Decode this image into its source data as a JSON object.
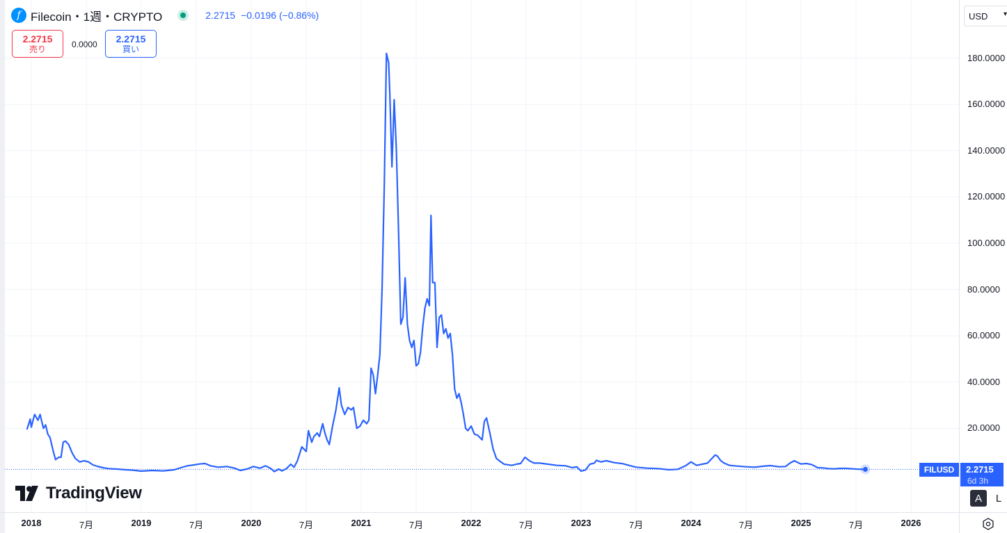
{
  "header": {
    "symbol_title": "Filecoin・1週・CRYPTO",
    "logo_glyph": "f",
    "last_price": "2.2715",
    "change": "−0.0196 (−0.86%)"
  },
  "trade": {
    "sell_price": "2.2715",
    "sell_label": "売り",
    "spread": "0.0000",
    "buy_price": "2.2715",
    "buy_label": "買い"
  },
  "currency": {
    "value": "USD"
  },
  "price_tag": {
    "symbol": "FILUSD",
    "value": "2.2715",
    "countdown": "6d 3h"
  },
  "branding": {
    "name": "TradingView"
  },
  "controls": {
    "auto": "A",
    "log": "L"
  },
  "colors": {
    "line": "#2962ff",
    "sell": "#f23645",
    "buy": "#2962ff",
    "status": "#089981"
  },
  "chart_data": {
    "type": "line",
    "title": "",
    "xlabel": "",
    "ylabel": "",
    "ylim": [
      -2,
      187
    ],
    "x_ticks": [
      {
        "t": 2018.0,
        "label": "2018",
        "year": true
      },
      {
        "t": 2018.5,
        "label": "7月",
        "year": false
      },
      {
        "t": 2019.0,
        "label": "2019",
        "year": true
      },
      {
        "t": 2019.5,
        "label": "7月",
        "year": false
      },
      {
        "t": 2020.0,
        "label": "2020",
        "year": true
      },
      {
        "t": 2020.5,
        "label": "7月",
        "year": false
      },
      {
        "t": 2021.0,
        "label": "2021",
        "year": true
      },
      {
        "t": 2021.5,
        "label": "7月",
        "year": false
      },
      {
        "t": 2022.0,
        "label": "2022",
        "year": true
      },
      {
        "t": 2022.5,
        "label": "7月",
        "year": false
      },
      {
        "t": 2023.0,
        "label": "2023",
        "year": true
      },
      {
        "t": 2023.5,
        "label": "7月",
        "year": false
      },
      {
        "t": 2024.0,
        "label": "2024",
        "year": true
      },
      {
        "t": 2024.5,
        "label": "7月",
        "year": false
      },
      {
        "t": 2025.0,
        "label": "2025",
        "year": true
      },
      {
        "t": 2025.5,
        "label": "7月",
        "year": false
      },
      {
        "t": 2026.0,
        "label": "2026",
        "year": true
      }
    ],
    "y_ticks": [
      {
        "v": 20,
        "label": "20.0000"
      },
      {
        "v": 40,
        "label": "40.0000"
      },
      {
        "v": 60,
        "label": "60.0000"
      },
      {
        "v": 80,
        "label": "80.0000"
      },
      {
        "v": 100,
        "label": "100.0000"
      },
      {
        "v": 120,
        "label": "120.0000"
      },
      {
        "v": 140,
        "label": "140.0000"
      },
      {
        "v": 160,
        "label": "160.0000"
      },
      {
        "v": 180,
        "label": "180.0000"
      }
    ],
    "series": [
      {
        "color": "#2962ff",
        "points": [
          [
            2017.96,
            19.5
          ],
          [
            2017.99,
            24
          ],
          [
            2018.0,
            20.5
          ],
          [
            2018.03,
            26
          ],
          [
            2018.06,
            23.5
          ],
          [
            2018.08,
            26
          ],
          [
            2018.11,
            20
          ],
          [
            2018.13,
            21.5
          ],
          [
            2018.15,
            17.5
          ],
          [
            2018.17,
            16
          ],
          [
            2018.2,
            10
          ],
          [
            2018.22,
            6.5
          ],
          [
            2018.25,
            7.5
          ],
          [
            2018.27,
            7.5
          ],
          [
            2018.29,
            14
          ],
          [
            2018.31,
            14.5
          ],
          [
            2018.34,
            13
          ],
          [
            2018.37,
            9.5
          ],
          [
            2018.4,
            7
          ],
          [
            2018.44,
            5.5
          ],
          [
            2018.48,
            6
          ],
          [
            2018.52,
            5.5
          ],
          [
            2018.56,
            4.2
          ],
          [
            2018.6,
            3.6
          ],
          [
            2018.65,
            3
          ],
          [
            2018.7,
            2.6
          ],
          [
            2018.78,
            2.4
          ],
          [
            2018.86,
            2.1
          ],
          [
            2018.93,
            1.9
          ],
          [
            2019.0,
            1.5
          ],
          [
            2019.1,
            1.8
          ],
          [
            2019.2,
            1.6
          ],
          [
            2019.3,
            2.1
          ],
          [
            2019.36,
            3
          ],
          [
            2019.42,
            3.8
          ],
          [
            2019.48,
            4.2
          ],
          [
            2019.53,
            4.6
          ],
          [
            2019.58,
            4.8
          ],
          [
            2019.63,
            3.8
          ],
          [
            2019.7,
            3.2
          ],
          [
            2019.78,
            3.5
          ],
          [
            2019.85,
            2.8
          ],
          [
            2019.9,
            1.8
          ],
          [
            2019.96,
            2.4
          ],
          [
            2020.02,
            3.5
          ],
          [
            2020.08,
            2.8
          ],
          [
            2020.13,
            3.8
          ],
          [
            2020.18,
            2.6
          ],
          [
            2020.21,
            1.3
          ],
          [
            2020.25,
            2.4
          ],
          [
            2020.28,
            1.6
          ],
          [
            2020.32,
            2.6
          ],
          [
            2020.36,
            4.5
          ],
          [
            2020.39,
            3.2
          ],
          [
            2020.42,
            6
          ],
          [
            2020.46,
            12
          ],
          [
            2020.5,
            10
          ],
          [
            2020.52,
            19
          ],
          [
            2020.55,
            14
          ],
          [
            2020.57,
            16.5
          ],
          [
            2020.6,
            18
          ],
          [
            2020.62,
            16.5
          ],
          [
            2020.65,
            22
          ],
          [
            2020.67,
            18
          ],
          [
            2020.69,
            15
          ],
          [
            2020.71,
            13
          ],
          [
            2020.74,
            21
          ],
          [
            2020.77,
            28
          ],
          [
            2020.8,
            37.5
          ],
          [
            2020.82,
            30
          ],
          [
            2020.85,
            26
          ],
          [
            2020.88,
            29
          ],
          [
            2020.91,
            28
          ],
          [
            2020.93,
            29
          ],
          [
            2020.96,
            20
          ],
          [
            2020.99,
            21
          ],
          [
            2021.02,
            23.5
          ],
          [
            2021.05,
            22
          ],
          [
            2021.07,
            23.5
          ],
          [
            2021.09,
            46
          ],
          [
            2021.11,
            43
          ],
          [
            2021.13,
            35
          ],
          [
            2021.15,
            43
          ],
          [
            2021.17,
            52
          ],
          [
            2021.19,
            80
          ],
          [
            2021.21,
            125
          ],
          [
            2021.23,
            182
          ],
          [
            2021.25,
            178
          ],
          [
            2021.26,
            165
          ],
          [
            2021.28,
            133
          ],
          [
            2021.3,
            162
          ],
          [
            2021.32,
            140
          ],
          [
            2021.34,
            105
          ],
          [
            2021.36,
            65
          ],
          [
            2021.38,
            68
          ],
          [
            2021.4,
            85
          ],
          [
            2021.42,
            65
          ],
          [
            2021.44,
            58
          ],
          [
            2021.46,
            55
          ],
          [
            2021.48,
            58
          ],
          [
            2021.5,
            47
          ],
          [
            2021.52,
            48
          ],
          [
            2021.54,
            53
          ],
          [
            2021.56,
            64
          ],
          [
            2021.58,
            72
          ],
          [
            2021.6,
            76
          ],
          [
            2021.62,
            73
          ],
          [
            2021.635,
            112
          ],
          [
            2021.65,
            83
          ],
          [
            2021.67,
            83
          ],
          [
            2021.69,
            55
          ],
          [
            2021.71,
            68
          ],
          [
            2021.73,
            69
          ],
          [
            2021.75,
            61
          ],
          [
            2021.77,
            63
          ],
          [
            2021.79,
            59
          ],
          [
            2021.81,
            61
          ],
          [
            2021.83,
            52
          ],
          [
            2021.85,
            37
          ],
          [
            2021.87,
            33
          ],
          [
            2021.89,
            35
          ],
          [
            2021.91,
            31
          ],
          [
            2021.93,
            26
          ],
          [
            2021.95,
            20
          ],
          [
            2021.97,
            19
          ],
          [
            2022.0,
            21
          ],
          [
            2022.03,
            17.5
          ],
          [
            2022.06,
            17
          ],
          [
            2022.08,
            16
          ],
          [
            2022.1,
            15
          ],
          [
            2022.12,
            23
          ],
          [
            2022.14,
            24.5
          ],
          [
            2022.17,
            18
          ],
          [
            2022.2,
            11
          ],
          [
            2022.23,
            7
          ],
          [
            2022.27,
            5.5
          ],
          [
            2022.3,
            4.5
          ],
          [
            2022.33,
            4.3
          ],
          [
            2022.37,
            4
          ],
          [
            2022.41,
            4.5
          ],
          [
            2022.45,
            4.8
          ],
          [
            2022.49,
            7.5
          ],
          [
            2022.53,
            6
          ],
          [
            2022.57,
            5
          ],
          [
            2022.62,
            5
          ],
          [
            2022.7,
            4.5
          ],
          [
            2022.78,
            4
          ],
          [
            2022.86,
            3.8
          ],
          [
            2022.92,
            3
          ],
          [
            2022.96,
            3.4
          ],
          [
            2023.0,
            1.5
          ],
          [
            2023.04,
            2
          ],
          [
            2023.08,
            4.5
          ],
          [
            2023.12,
            5
          ],
          [
            2023.14,
            6.2
          ],
          [
            2023.18,
            5.5
          ],
          [
            2023.23,
            6
          ],
          [
            2023.3,
            5.2
          ],
          [
            2023.38,
            4.7
          ],
          [
            2023.45,
            3.8
          ],
          [
            2023.5,
            3.2
          ],
          [
            2023.6,
            2.8
          ],
          [
            2023.7,
            2.6
          ],
          [
            2023.8,
            2.1
          ],
          [
            2023.88,
            2.3
          ],
          [
            2023.95,
            3.8
          ],
          [
            2024.0,
            5.5
          ],
          [
            2024.05,
            4
          ],
          [
            2024.1,
            4.5
          ],
          [
            2024.15,
            5
          ],
          [
            2024.18,
            6.5
          ],
          [
            2024.2,
            7.5
          ],
          [
            2024.22,
            8.5
          ],
          [
            2024.24,
            8
          ],
          [
            2024.27,
            6
          ],
          [
            2024.3,
            5
          ],
          [
            2024.35,
            4
          ],
          [
            2024.42,
            3.7
          ],
          [
            2024.5,
            3.4
          ],
          [
            2024.58,
            3.2
          ],
          [
            2024.65,
            3.6
          ],
          [
            2024.72,
            3.9
          ],
          [
            2024.8,
            3.4
          ],
          [
            2024.86,
            3.5
          ],
          [
            2024.9,
            5
          ],
          [
            2024.94,
            6
          ],
          [
            2024.96,
            5.5
          ],
          [
            2025.0,
            4.6
          ],
          [
            2025.05,
            4.8
          ],
          [
            2025.1,
            4.3
          ],
          [
            2025.15,
            3
          ],
          [
            2025.2,
            2.9
          ],
          [
            2025.25,
            2.6
          ],
          [
            2025.3,
            2.5
          ],
          [
            2025.35,
            2.7
          ],
          [
            2025.4,
            2.7
          ],
          [
            2025.45,
            2.6
          ],
          [
            2025.5,
            2.4
          ],
          [
            2025.55,
            2.3
          ],
          [
            2025.585,
            2.2715
          ]
        ]
      }
    ],
    "last_value": 2.2715,
    "grid": true,
    "legend": "none"
  }
}
